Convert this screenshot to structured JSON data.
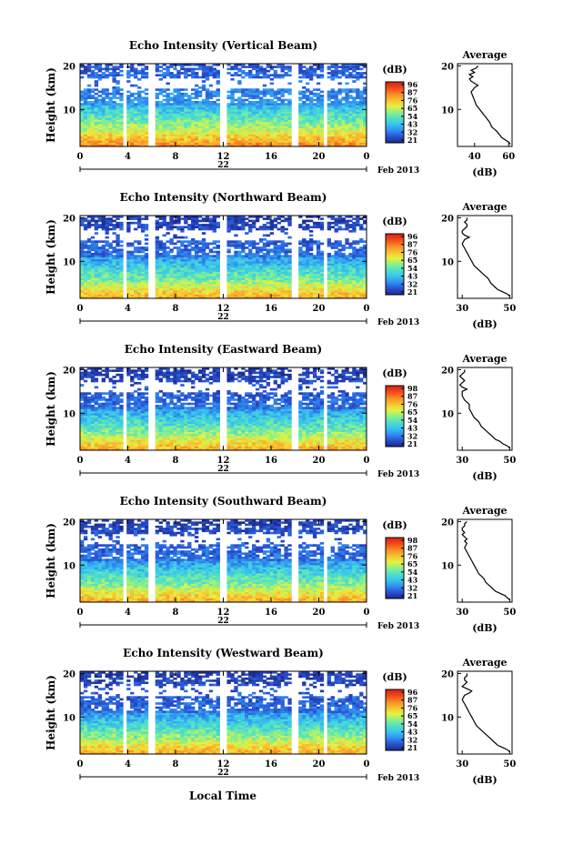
{
  "chart_data": [
    {
      "type": "heatmap",
      "title": "Echo Intensity (Vertical Beam)",
      "ylabel": "Height (km)",
      "x_ticks": [
        "0",
        "4",
        "8",
        "12",
        "16",
        "20",
        "0"
      ],
      "y_ticks": [
        "20",
        "10"
      ],
      "xlim": [
        0,
        24
      ],
      "ylim": [
        1.5,
        20.5
      ],
      "day_label": "22",
      "date_label": "Feb 2013",
      "colorbar": {
        "label": "(dB)",
        "ticks": [
          "96",
          "87",
          "76",
          "65",
          "54",
          "43",
          "32",
          "21"
        ]
      },
      "missing_gaps_hours": [
        [
          3.5,
          3.9
        ],
        [
          5.8,
          6.2
        ],
        [
          11.8,
          12.2
        ],
        [
          17.8,
          18.2
        ],
        [
          20.4,
          20.8
        ]
      ],
      "average_profile": {
        "title": "Average",
        "xlabel": "(dB)",
        "x_ticks": [
          "40",
          "60"
        ],
        "y_ticks": [
          "20",
          "10"
        ],
        "xlim": [
          30,
          62
        ],
        "ylim": [
          1.5,
          20.5
        ],
        "height_km": [
          2,
          2.5,
          3,
          3.5,
          4,
          5,
          6,
          7,
          8,
          9,
          10,
          11,
          12,
          13,
          14,
          15,
          15.5,
          16,
          16.5,
          17,
          17.5,
          18,
          18.5,
          19,
          19.5,
          20
        ],
        "db": [
          61,
          60,
          58,
          56,
          55,
          53,
          50,
          49,
          47,
          45,
          43,
          41,
          40,
          39,
          38,
          40,
          42,
          40,
          38,
          37,
          39,
          37,
          40,
          38,
          41,
          42
        ]
      }
    },
    {
      "type": "heatmap",
      "title": "Echo Intensity (Northward Beam)",
      "ylabel": "Height (km)",
      "x_ticks": [
        "0",
        "4",
        "8",
        "12",
        "16",
        "20",
        "0"
      ],
      "y_ticks": [
        "20",
        "10"
      ],
      "xlim": [
        0,
        24
      ],
      "ylim": [
        1.5,
        20.5
      ],
      "day_label": "22",
      "date_label": "Feb 2013",
      "colorbar": {
        "label": "(dB)",
        "ticks": [
          "96",
          "87",
          "76",
          "65",
          "54",
          "43",
          "32",
          "21"
        ]
      },
      "missing_gaps_hours": [
        [
          3.5,
          3.9
        ],
        [
          5.8,
          6.2
        ],
        [
          11.8,
          12.2
        ],
        [
          17.8,
          18.2
        ],
        [
          20.4,
          20.8
        ]
      ],
      "average_profile": {
        "title": "Average",
        "xlabel": "(dB)",
        "x_ticks": [
          "30",
          "50"
        ],
        "y_ticks": [
          "20",
          "10"
        ],
        "xlim": [
          28,
          51
        ],
        "ylim": [
          1.5,
          20.5
        ],
        "height_km": [
          2,
          2.5,
          3,
          3.5,
          4,
          5,
          6,
          7,
          8,
          9,
          10,
          11,
          12,
          13,
          14,
          15,
          15.5,
          16,
          16.5,
          17,
          17.5,
          18,
          18.5,
          19,
          19.5,
          20
        ],
        "db": [
          50,
          49,
          47,
          45,
          44,
          42,
          41,
          39,
          37,
          35,
          34,
          33,
          32,
          31,
          30,
          31,
          33,
          31,
          30,
          30,
          31,
          32,
          32,
          31,
          32,
          32
        ]
      }
    },
    {
      "type": "heatmap",
      "title": "Echo Intensity (Eastward Beam)",
      "ylabel": "Height (km)",
      "x_ticks": [
        "0",
        "4",
        "8",
        "12",
        "16",
        "20",
        "0"
      ],
      "y_ticks": [
        "20",
        "10"
      ],
      "xlim": [
        0,
        24
      ],
      "ylim": [
        1.5,
        20.5
      ],
      "day_label": "22",
      "date_label": "Feb 2013",
      "colorbar": {
        "label": "(dB)",
        "ticks": [
          "98",
          "87",
          "76",
          "65",
          "54",
          "43",
          "32",
          "21"
        ]
      },
      "missing_gaps_hours": [
        [
          3.5,
          3.9
        ],
        [
          5.8,
          6.2
        ],
        [
          11.8,
          12.2
        ],
        [
          17.8,
          18.2
        ],
        [
          20.4,
          20.8
        ]
      ],
      "average_profile": {
        "title": "Average",
        "xlabel": "(dB)",
        "x_ticks": [
          "30",
          "50"
        ],
        "y_ticks": [
          "20",
          "10"
        ],
        "xlim": [
          28,
          51
        ],
        "ylim": [
          1.5,
          20.5
        ],
        "height_km": [
          2,
          2.5,
          3,
          3.5,
          4,
          5,
          6,
          7,
          8,
          9,
          10,
          11,
          12,
          13,
          14,
          15,
          15.5,
          16,
          16.5,
          17,
          17.5,
          18,
          18.5,
          19,
          19.5,
          20
        ],
        "db": [
          50,
          49,
          47,
          46,
          44,
          42,
          40,
          38,
          37,
          35,
          34,
          33,
          33,
          31,
          30,
          30,
          32,
          30,
          29,
          30,
          31,
          30,
          29,
          30,
          31,
          31
        ]
      }
    },
    {
      "type": "heatmap",
      "title": "Echo Intensity (Southward Beam)",
      "ylabel": "Height (km)",
      "x_ticks": [
        "0",
        "4",
        "8",
        "12",
        "16",
        "20",
        "0"
      ],
      "y_ticks": [
        "20",
        "10"
      ],
      "xlim": [
        0,
        24
      ],
      "ylim": [
        1.5,
        20.5
      ],
      "day_label": "22",
      "date_label": "Feb 2013",
      "colorbar": {
        "label": "(dB)",
        "ticks": [
          "98",
          "87",
          "76",
          "65",
          "54",
          "43",
          "32",
          "21"
        ]
      },
      "missing_gaps_hours": [
        [
          3.5,
          3.9
        ],
        [
          5.8,
          6.2
        ],
        [
          11.8,
          12.2
        ],
        [
          17.8,
          18.2
        ],
        [
          20.4,
          20.8
        ]
      ],
      "average_profile": {
        "title": "Average",
        "xlabel": "(dB)",
        "x_ticks": [
          "30",
          "50"
        ],
        "y_ticks": [
          "20",
          "10"
        ],
        "xlim": [
          28,
          51
        ],
        "ylim": [
          1.5,
          20.5
        ],
        "height_km": [
          2,
          2.5,
          3,
          3.5,
          4,
          5,
          6,
          7,
          8,
          9,
          10,
          11,
          12,
          13,
          14,
          15,
          15.5,
          16,
          16.5,
          17,
          17.5,
          18,
          18.5,
          19,
          19.5,
          20
        ],
        "db": [
          50,
          49,
          48,
          46,
          44,
          42,
          40,
          39,
          37,
          36,
          35,
          34,
          33,
          32,
          31,
          32,
          31,
          32,
          31,
          30,
          31,
          30,
          30,
          31,
          31,
          32
        ]
      }
    },
    {
      "type": "heatmap",
      "title": "Echo Intensity (Westward Beam)",
      "ylabel": "Height (km)",
      "x_ticks": [
        "0",
        "4",
        "8",
        "12",
        "16",
        "20",
        "0"
      ],
      "y_ticks": [
        "20",
        "10"
      ],
      "xlim": [
        0,
        24
      ],
      "ylim": [
        1.5,
        20.5
      ],
      "day_label": "22",
      "date_label": "Feb 2013",
      "colorbar": {
        "label": "(dB)",
        "ticks": [
          "96",
          "87",
          "76",
          "65",
          "54",
          "43",
          "32",
          "21"
        ]
      },
      "missing_gaps_hours": [
        [
          3.5,
          3.9
        ],
        [
          5.8,
          6.2
        ],
        [
          11.8,
          12.2
        ],
        [
          17.8,
          18.2
        ],
        [
          20.4,
          20.8
        ]
      ],
      "average_profile": {
        "title": "Average",
        "xlabel": "(dB)",
        "x_ticks": [
          "30",
          "50"
        ],
        "y_ticks": [
          "20",
          "10"
        ],
        "xlim": [
          28,
          51
        ],
        "ylim": [
          1.5,
          20.5
        ],
        "height_km": [
          2,
          2.5,
          3,
          3.5,
          4,
          5,
          6,
          7,
          8,
          9,
          10,
          11,
          12,
          13,
          14,
          15,
          15.5,
          16,
          16.5,
          17,
          17.5,
          18,
          18.5,
          19,
          19.5,
          20
        ],
        "db": [
          50,
          49,
          47,
          45,
          44,
          42,
          40,
          38,
          36,
          35,
          34,
          33,
          32,
          31,
          30,
          31,
          33,
          34,
          32,
          30,
          31,
          32,
          31,
          31,
          32,
          32
        ]
      }
    }
  ],
  "footer": {
    "xlabel": "Local Time"
  },
  "colormap": [
    "#1c2a8a",
    "#2a4fd0",
    "#2f8ff0",
    "#39c2f0",
    "#4fe0c8",
    "#8ef088",
    "#e8f040",
    "#f8c030",
    "#f88a28",
    "#f04818",
    "#d8201a"
  ]
}
